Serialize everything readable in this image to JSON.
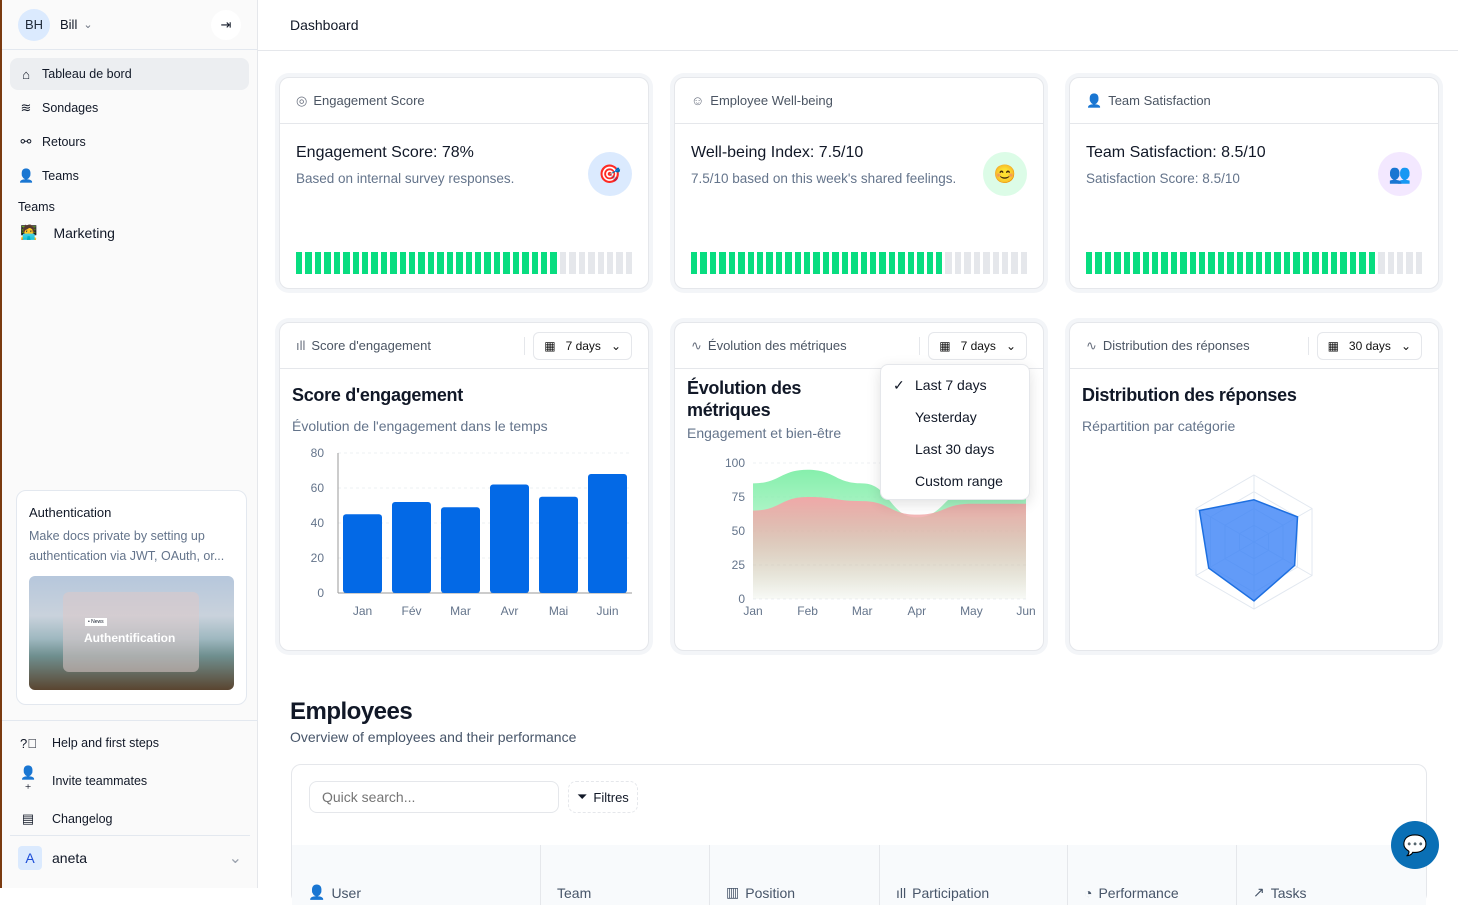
{
  "sidebar": {
    "user": {
      "initials": "BH",
      "name": "Bill"
    },
    "nav": [
      {
        "label": "Tableau de bord",
        "icon": "home-icon",
        "active": true
      },
      {
        "label": "Sondages",
        "icon": "layers-icon"
      },
      {
        "label": "Retours",
        "icon": "plug-icon"
      },
      {
        "label": "Teams",
        "icon": "users-icon"
      }
    ],
    "section_label": "Teams",
    "teams": [
      {
        "label": "Marketing",
        "icon": "technologist-emoji"
      }
    ],
    "promo": {
      "title": "Authentication",
      "text": "Make docs private by setting up authentication via JWT, OAuth, or...",
      "badge": "• News",
      "image_title": "Authentification"
    },
    "footer": [
      {
        "label": "Help and first steps",
        "icon": "help-circle-icon"
      },
      {
        "label": "Invite teammates",
        "icon": "user-plus-icon"
      },
      {
        "label": "Changelog",
        "icon": "newspaper-icon"
      }
    ],
    "account": {
      "initial": "A",
      "name": "aneta"
    }
  },
  "header": {
    "title": "Dashboard"
  },
  "kpis": [
    {
      "header": "Engagement Score",
      "title": "Engagement Score: 78%",
      "sub": "Based on internal survey responses.",
      "emoji": "🎯",
      "emoji_bg": "#dbeafe",
      "progress": 78
    },
    {
      "header": "Employee Well-being",
      "title": "Well-being Index: 7.5/10",
      "sub": "7.5/10 based on this week's shared feelings.",
      "emoji": "😊",
      "emoji_bg": "#dcfce7",
      "progress": 75
    },
    {
      "header": "Team Satisfaction",
      "title": "Team Satisfaction: 8.5/10",
      "sub": "Satisfaction Score: 8.5/10",
      "emoji": "👥",
      "emoji_bg": "#f3e8ff",
      "progress": 85
    }
  ],
  "charts_meta": [
    {
      "header": "Score d'engagement",
      "range": "7 days",
      "title": "Score d'engagement",
      "sub": "Évolution de l'engagement dans le temps"
    },
    {
      "header": "Évolution des métriques",
      "range": "7 days",
      "title": "Évolution des métriques",
      "sub": "Engagement et bien-être"
    },
    {
      "header": "Distribution des réponses",
      "range": "30 days",
      "title": "Distribution des réponses",
      "sub": "Répartition par catégorie"
    }
  ],
  "dropdown": {
    "options": [
      "Last 7 days",
      "Yesterday",
      "Last 30 days",
      "Custom range"
    ],
    "selected": "Last 7 days"
  },
  "chart_data": [
    {
      "type": "bar",
      "categories": [
        "Jan",
        "Fév",
        "Mar",
        "Avr",
        "Mai",
        "Juin"
      ],
      "values": [
        45,
        52,
        49,
        62,
        55,
        68
      ],
      "ylim": [
        0,
        80
      ],
      "yticks": [
        0,
        20,
        40,
        60,
        80
      ],
      "grid": true,
      "color": "#0369e6"
    },
    {
      "type": "area",
      "categories": [
        "Jan",
        "Feb",
        "Mar",
        "Apr",
        "May",
        "Jun"
      ],
      "ylim": [
        0,
        100
      ],
      "yticks": [
        0,
        25,
        50,
        75,
        100
      ],
      "series": [
        {
          "values": [
            85,
            95,
            85,
            60,
            80,
            88
          ],
          "color": "#86efac"
        },
        {
          "values": [
            65,
            75,
            72,
            62,
            70,
            70
          ],
          "color": "#f0a8a8"
        }
      ]
    },
    {
      "type": "radar",
      "values": [
        63,
        75,
        70,
        88,
        78,
        94
      ],
      "max": 100,
      "color": "#3b82f6"
    }
  ],
  "employees": {
    "title": "Employees",
    "sub": "Overview of employees and their performance",
    "search_placeholder": "Quick search...",
    "filter": "Filtres",
    "columns": [
      {
        "label": "User",
        "icon": "users-icon"
      },
      {
        "label": "Team",
        "icon": ""
      },
      {
        "label": "Position",
        "icon": "briefcase-icon"
      },
      {
        "label": "Participation",
        "icon": "bar-chart-icon"
      },
      {
        "label": "Performance",
        "icon": "pie-chart-icon"
      },
      {
        "label": "Tasks",
        "icon": "trending-up-icon"
      }
    ]
  }
}
